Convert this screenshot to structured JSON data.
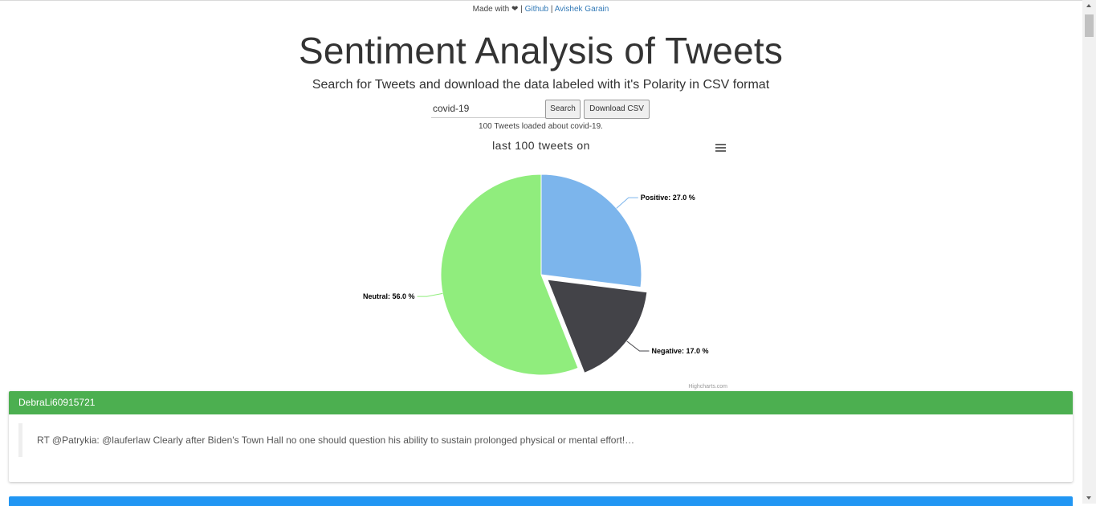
{
  "header": {
    "made_with": "Made with",
    "heart": "❤",
    "sep1": "|",
    "github": "Github",
    "sep2": "|",
    "author": "Avishek Garain"
  },
  "title": "Sentiment Analysis of Tweets",
  "subtitle": "Search for Tweets and download the data labeled with it's Polarity in CSV format",
  "search": {
    "value": "covid-19",
    "search_label": "Search",
    "download_label": "Download CSV"
  },
  "status": "100 Tweets loaded about covid-19.",
  "chart_title": "last 100 tweets on",
  "credits": "Highcharts.com",
  "chart_data": {
    "type": "pie",
    "title": "last 100 tweets on",
    "unit": "%",
    "slices": [
      {
        "name": "Positive",
        "value": 27.0,
        "color": "#7cb5ec",
        "label": "Positive: 27.0 %",
        "sliced": false
      },
      {
        "name": "Negative",
        "value": 17.0,
        "color": "#434348",
        "label": "Negative: 17.0 %",
        "sliced": true
      },
      {
        "name": "Neutral",
        "value": 56.0,
        "color": "#90ed7d",
        "label": "Neutral: 56.0 %",
        "sliced": false
      }
    ]
  },
  "tweets": [
    {
      "user": "DebraLi60915721",
      "text": "RT @Patrykia: @lauferlaw Clearly after Biden's Town Hall no one should question his ability to sustain prolonged physical or mental effort!…",
      "color": "#4caf50"
    }
  ],
  "next_card_color": "#2196f3"
}
